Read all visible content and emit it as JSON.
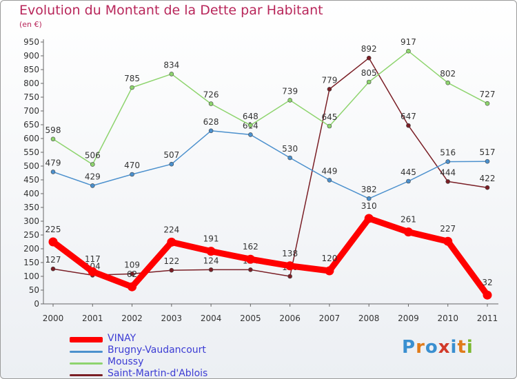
{
  "header": {
    "title": "Evolution du Montant de la Dette par Habitant",
    "subtitle": "(en €)"
  },
  "logo": {
    "text": "Proxiti"
  },
  "chart_data": {
    "type": "line",
    "title": "Evolution du Montant de la Dette par Habitant",
    "subtitle": "(en €)",
    "x": [
      "2000",
      "2001",
      "2002",
      "2003",
      "2004",
      "2005",
      "2006",
      "2007",
      "2008",
      "2009",
      "2010",
      "2011"
    ],
    "ylim": [
      0,
      950
    ],
    "yticks": [
      0,
      50,
      100,
      150,
      200,
      250,
      300,
      350,
      400,
      450,
      500,
      550,
      600,
      650,
      700,
      750,
      800,
      850,
      900,
      950
    ],
    "grid": false,
    "legend_position": "bottom-left",
    "series": [
      {
        "name": "VINAY",
        "color": "#ff0000",
        "values": [
          225,
          117,
          62,
          224,
          191,
          162,
          138,
          120,
          310,
          261,
          227,
          32
        ]
      },
      {
        "name": "Brugny-Vaudancourt",
        "color": "#4b90cd",
        "values": [
          479,
          429,
          470,
          507,
          628,
          614,
          530,
          449,
          382,
          445,
          516,
          517
        ]
      },
      {
        "name": "Moussy",
        "color": "#8ed46e",
        "values": [
          598,
          506,
          785,
          834,
          726,
          648,
          739,
          645,
          805,
          917,
          802,
          727
        ]
      },
      {
        "name": "Saint-Martin-d'Ablois",
        "color": "#7a1e25",
        "values": [
          127,
          104,
          109,
          122,
          124,
          124,
          100,
          779,
          892,
          647,
          444,
          422
        ]
      }
    ]
  }
}
